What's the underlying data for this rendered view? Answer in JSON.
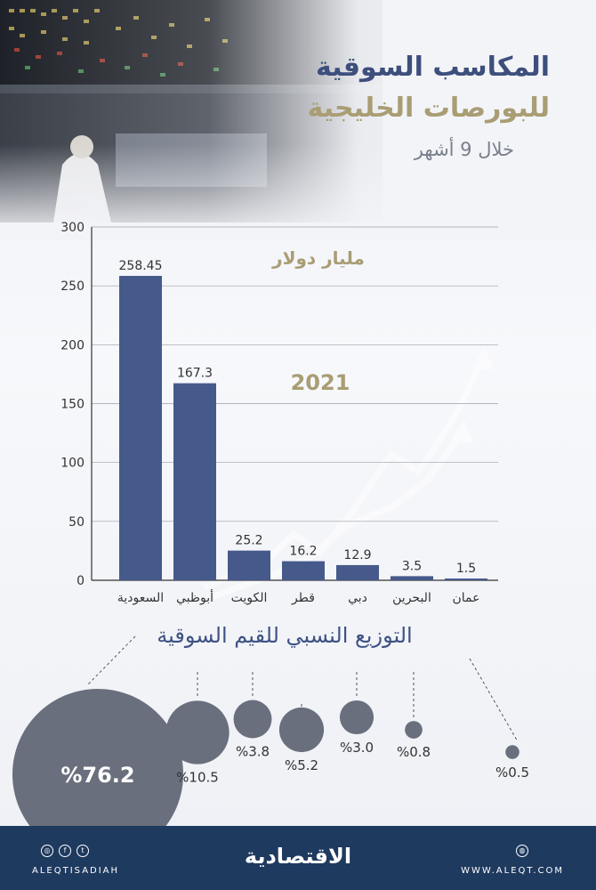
{
  "header": {
    "title_line1": "المكاسب السوقية",
    "title_line2": "للبورصات الخليجية",
    "subtitle": "خلال 9 أشهر"
  },
  "chart_data": {
    "type": "bar",
    "unit_label": "مليار دولار",
    "year_label": "2021",
    "categories": [
      "السعودية",
      "أبوظبي",
      "الكويت",
      "قطر",
      "دبي",
      "البحرين",
      "عمان"
    ],
    "values": [
      258.45,
      167.3,
      25.2,
      16.2,
      12.9,
      3.5,
      1.5
    ],
    "value_labels": [
      "258.45",
      "167.3",
      "25.2",
      "16.2",
      "12.9",
      "3.5",
      "1.5"
    ],
    "ylim": [
      0,
      300
    ],
    "yticks": [
      0,
      50,
      100,
      150,
      200,
      250,
      300
    ],
    "grid": true,
    "bar_color": "#46598b"
  },
  "distribution": {
    "title": "التوزيع النسبي للقيم السوقية",
    "shares": [
      {
        "country": "السعودية",
        "label": "%76.2",
        "value": 76.2
      },
      {
        "country": "أبوظبي",
        "label": "%10.5",
        "value": 10.5
      },
      {
        "country": "الكويت",
        "label": "%3.8",
        "value": 3.8
      },
      {
        "country": "قطر",
        "label": "%5.2",
        "value": 5.2
      },
      {
        "country": "دبي",
        "label": "%3.0",
        "value": 3.0
      },
      {
        "country": "البحرين",
        "label": "%0.8",
        "value": 0.8
      },
      {
        "country": "عمان",
        "label": "%0.5",
        "value": 0.5
      }
    ],
    "bubble_color": "#6a6f7d"
  },
  "footer": {
    "brand": "الاقتصادية",
    "handle": "ALEQTISADIAH",
    "website": "WWW.ALEQT.COM",
    "social_icons": [
      "instagram-icon",
      "facebook-icon",
      "twitter-icon"
    ],
    "web_icon": "globe-icon"
  }
}
